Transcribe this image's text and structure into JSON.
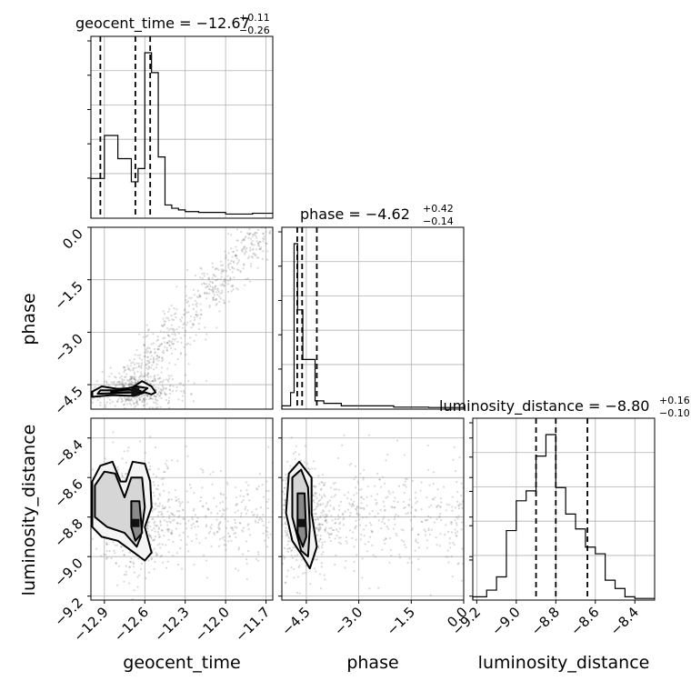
{
  "chart_data": {
    "type": "corner",
    "parameters": [
      "geocent_time",
      "phase",
      "luminosity_distance"
    ],
    "axis_labels": {
      "bottom": [
        "geocent_time",
        "phase",
        "luminosity_distance"
      ],
      "left": [
        "phase",
        "luminosity_distance"
      ]
    },
    "ranges": {
      "geocent_time": [
        -13.0,
        -11.65
      ],
      "phase": [
        -5.2,
        0.0
      ],
      "luminosity_distance": [
        -9.22,
        -8.3
      ]
    },
    "ticks": {
      "geocent_time": [
        -12.9,
        -12.6,
        -12.3,
        -12.0,
        -11.7
      ],
      "phase": [
        -4.5,
        -3.0,
        -1.5,
        0.0
      ],
      "luminosity_distance": [
        -9.2,
        -9.0,
        -8.8,
        -8.6,
        -8.4
      ]
    },
    "tick_labels": {
      "geocent_time": [
        "−12.9",
        "−12.6",
        "−12.3",
        "−12.0",
        "−11.7"
      ],
      "phase": [
        "−4.5",
        "−3.0",
        "−1.5",
        "0.0"
      ],
      "phase_left": [
        "0.0",
        "−1.5",
        "−3.0",
        "−4.5"
      ],
      "luminosity_distance": [
        "−9.2",
        "−9.0",
        "−8.8",
        "−8.6",
        "−8.4"
      ],
      "luminosity_distance_left": [
        "−8.4",
        "−8.6",
        "−8.8",
        "−9.0",
        "−9.2"
      ]
    },
    "titles": [
      {
        "param": "geocent_time",
        "text": "geocent_time = −12.67",
        "plus": "+0.11",
        "minus": "−0.26"
      },
      {
        "param": "phase",
        "text": "phase = −4.62",
        "plus": "+0.42",
        "minus": "−0.14"
      },
      {
        "param": "luminosity_distance",
        "text": "luminosity_distance = −8.80",
        "plus": "+0.16",
        "minus": "−0.10"
      }
    ],
    "quantiles": {
      "geocent_time": [
        -12.93,
        -12.67,
        -12.56
      ],
      "phase": [
        -4.76,
        -4.62,
        -4.2
      ],
      "luminosity_distance": [
        -8.9,
        -8.8,
        -8.64
      ]
    },
    "histograms": {
      "geocent_time": {
        "edges": [
          -13.0,
          -12.9,
          -12.8,
          -12.7,
          -12.65,
          -12.6,
          -12.55,
          -12.5,
          -12.45,
          -12.4,
          -12.35,
          -12.3,
          -12.2,
          -12.1,
          -12.0,
          -11.9,
          -11.8,
          -11.65
        ],
        "heights": [
          0.24,
          0.5,
          0.36,
          0.22,
          0.3,
          1.0,
          0.88,
          0.37,
          0.08,
          0.06,
          0.05,
          0.04,
          0.035,
          0.035,
          0.025,
          0.025,
          0.03
        ]
      },
      "phase": {
        "edges": [
          -5.2,
          -4.95,
          -4.85,
          -4.75,
          -4.6,
          -4.45,
          -4.35,
          -4.25,
          -4.15,
          -4.0,
          -3.8,
          -3.5,
          -3.0,
          -2.0,
          -1.0,
          0.0
        ],
        "heights": [
          0.02,
          0.1,
          1.0,
          0.6,
          0.3,
          0.3,
          0.3,
          0.05,
          0.05,
          0.035,
          0.035,
          0.02,
          0.02,
          0.012,
          0.01
        ]
      },
      "luminosity_distance": {
        "edges": [
          -9.22,
          -9.15,
          -9.1,
          -9.05,
          -9.0,
          -8.95,
          -8.9,
          -8.85,
          -8.8,
          -8.75,
          -8.7,
          -8.65,
          -8.6,
          -8.55,
          -8.5,
          -8.45,
          -8.4,
          -8.3
        ],
        "heights": [
          0.02,
          0.06,
          0.14,
          0.42,
          0.6,
          0.66,
          0.87,
          1.0,
          0.68,
          0.52,
          0.43,
          0.32,
          0.28,
          0.12,
          0.07,
          0.02,
          0.01
        ]
      }
    },
    "contours": {
      "geocent_time__phase": {
        "levels": [
          [
            [
              -12.99,
              -4.85
            ],
            [
              -12.85,
              -4.8
            ],
            [
              -12.68,
              -4.82
            ],
            [
              -12.6,
              -4.72
            ],
            [
              -12.55,
              -4.78
            ],
            [
              -12.52,
              -4.72
            ],
            [
              -12.55,
              -4.55
            ],
            [
              -12.62,
              -4.4
            ],
            [
              -12.7,
              -4.6
            ],
            [
              -12.8,
              -4.62
            ],
            [
              -12.92,
              -4.55
            ],
            [
              -12.99,
              -4.7
            ]
          ],
          [
            [
              -12.95,
              -4.76
            ],
            [
              -12.8,
              -4.74
            ],
            [
              -12.62,
              -4.72
            ],
            [
              -12.58,
              -4.6
            ],
            [
              -12.66,
              -4.55
            ],
            [
              -12.8,
              -4.66
            ],
            [
              -12.93,
              -4.66
            ]
          ],
          [
            [
              -12.85,
              -4.72
            ],
            [
              -12.7,
              -4.72
            ],
            [
              -12.63,
              -4.68
            ],
            [
              -12.72,
              -4.64
            ],
            [
              -12.85,
              -4.68
            ]
          ]
        ],
        "peak": [
          -12.67,
          -4.7
        ],
        "scatter": {
          "n": 1100,
          "mode": "diagonal_plus_cluster",
          "x_center": -12.67,
          "y_center": -4.7
        }
      },
      "geocent_time__luminosity_distance": {
        "levels": [
          [
            [
              -12.99,
              -8.62
            ],
            [
              -12.93,
              -8.54
            ],
            [
              -12.84,
              -8.52
            ],
            [
              -12.78,
              -8.62
            ],
            [
              -12.74,
              -8.62
            ],
            [
              -12.69,
              -8.52
            ],
            [
              -12.6,
              -8.53
            ],
            [
              -12.56,
              -8.62
            ],
            [
              -12.55,
              -8.75
            ],
            [
              -12.6,
              -8.85
            ],
            [
              -12.55,
              -8.98
            ],
            [
              -12.6,
              -9.02
            ],
            [
              -12.68,
              -8.98
            ],
            [
              -12.8,
              -8.92
            ],
            [
              -12.92,
              -8.9
            ],
            [
              -12.99,
              -8.85
            ]
          ],
          [
            [
              -12.97,
              -8.64
            ],
            [
              -12.9,
              -8.57
            ],
            [
              -12.82,
              -8.58
            ],
            [
              -12.75,
              -8.7
            ],
            [
              -12.7,
              -8.6
            ],
            [
              -12.62,
              -8.6
            ],
            [
              -12.6,
              -8.75
            ],
            [
              -12.63,
              -8.9
            ],
            [
              -12.66,
              -8.95
            ],
            [
              -12.75,
              -8.88
            ],
            [
              -12.88,
              -8.85
            ],
            [
              -12.97,
              -8.8
            ]
          ],
          [
            [
              -12.7,
              -8.72
            ],
            [
              -12.64,
              -8.72
            ],
            [
              -12.62,
              -8.88
            ],
            [
              -12.67,
              -8.92
            ],
            [
              -12.7,
              -8.85
            ]
          ]
        ],
        "peak": [
          -12.67,
          -8.83
        ],
        "scatter": {
          "n": 900,
          "mode": "wide",
          "x_center": -12.67,
          "y_center": -8.8
        }
      },
      "phase__luminosity_distance": {
        "levels": [
          [
            [
              -5.0,
              -8.58
            ],
            [
              -4.7,
              -8.52
            ],
            [
              -4.35,
              -8.6
            ],
            [
              -4.35,
              -8.78
            ],
            [
              -4.2,
              -8.95
            ],
            [
              -4.4,
              -9.06
            ],
            [
              -4.6,
              -9.0
            ],
            [
              -4.9,
              -8.92
            ],
            [
              -5.08,
              -8.78
            ]
          ],
          [
            [
              -4.9,
              -8.6
            ],
            [
              -4.65,
              -8.56
            ],
            [
              -4.45,
              -8.65
            ],
            [
              -4.4,
              -8.85
            ],
            [
              -4.45,
              -9.0
            ],
            [
              -4.65,
              -8.97
            ],
            [
              -4.9,
              -8.8
            ]
          ],
          [
            [
              -4.75,
              -8.68
            ],
            [
              -4.55,
              -8.68
            ],
            [
              -4.5,
              -8.9
            ],
            [
              -4.6,
              -8.95
            ],
            [
              -4.75,
              -8.88
            ]
          ]
        ],
        "peak": [
          -4.62,
          -8.83
        ],
        "scatter": {
          "n": 900,
          "mode": "wide",
          "x_center": -4.62,
          "y_center": -8.8
        }
      }
    }
  }
}
